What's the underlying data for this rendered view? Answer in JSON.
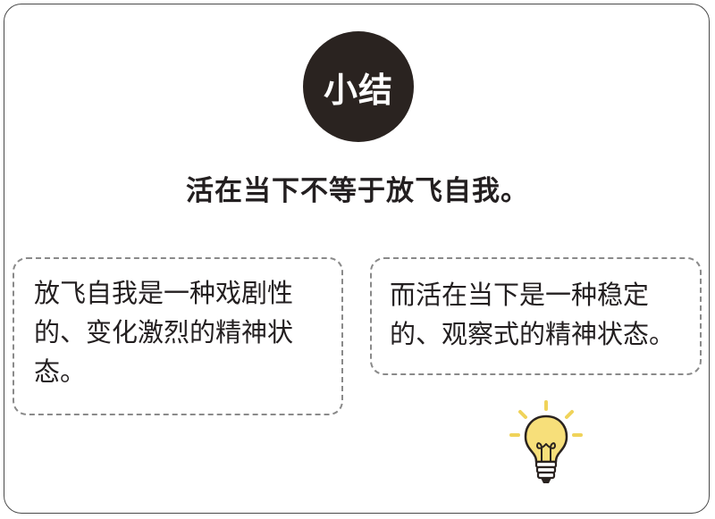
{
  "badge": {
    "label": "小结"
  },
  "headline": "活在当下不等于放飞自我。",
  "notes": [
    {
      "text": "放飞自我是一种戏剧性的、变化激烈的精神状态。"
    },
    {
      "text": "而活在当下是一种稳定的、观察式的精神状态。"
    }
  ],
  "decorations": {
    "icon": "lightbulb-icon"
  },
  "colors": {
    "badge_fill": "#2a2320",
    "text": "#231f20",
    "card_border": "#4a4a4a",
    "dashed_border": "#8a8a8a",
    "bulb_fill": "#f7df7a",
    "bulb_rays": "#f0d35a"
  }
}
